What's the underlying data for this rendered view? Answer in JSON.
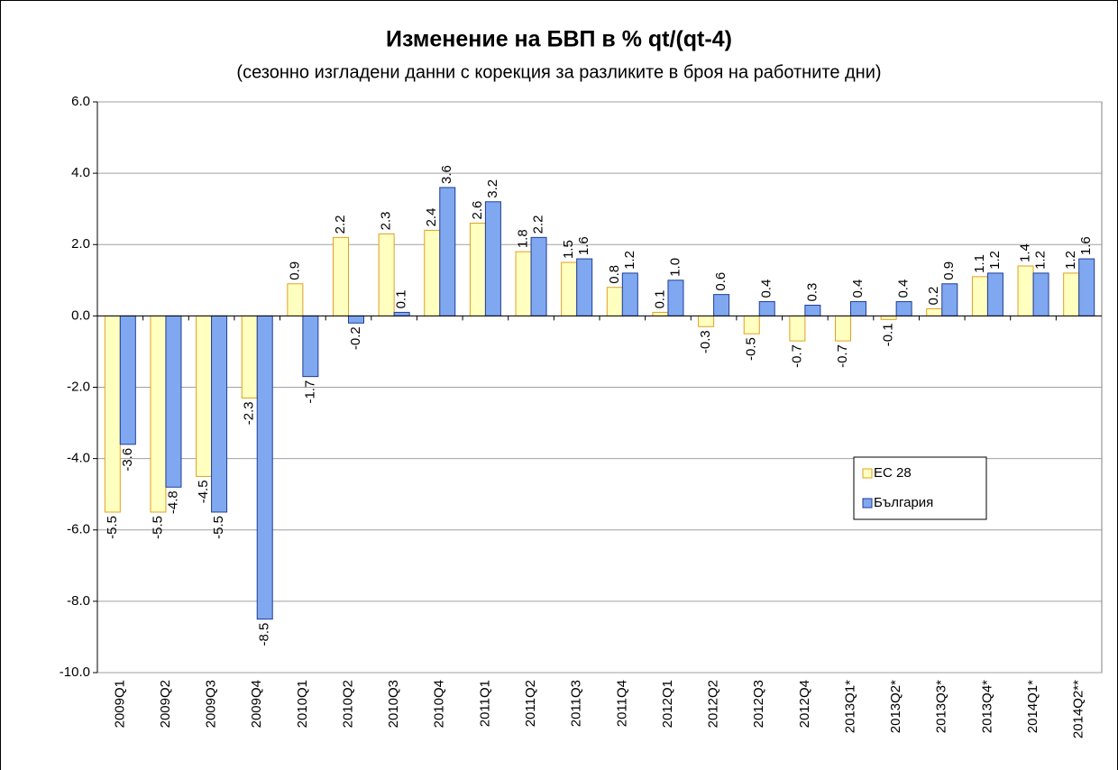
{
  "chart_data": {
    "type": "bar",
    "title": "Изменение на БВП в % qt/(qt-4)",
    "subtitle": "(сезонно изгладени данни с корекция за разликите в броя на работните дни)",
    "categories": [
      "2009Q1",
      "2009Q2",
      "2009Q3",
      "2009Q4",
      "2010Q1",
      "2010Q2",
      "2010Q3",
      "2010Q4",
      "2011Q1",
      "2011Q2",
      "2011Q3",
      "2011Q4",
      "2012Q1",
      "2012Q2",
      "2012Q3",
      "2012Q4",
      "2013Q1*",
      "2013Q2*",
      "2013Q3*",
      "2013Q4*",
      "2014Q1*",
      "2014Q2**"
    ],
    "series": [
      {
        "name": "ЕС 28",
        "color": "#ffffc0",
        "stroke": "#e0a020",
        "values": [
          -5.5,
          -5.5,
          -4.5,
          -2.3,
          0.9,
          2.2,
          2.3,
          2.4,
          2.6,
          1.8,
          1.5,
          0.8,
          0.1,
          -0.3,
          -0.5,
          -0.7,
          -0.7,
          -0.1,
          0.2,
          1.1,
          1.4,
          1.2
        ],
        "value_labels": [
          "-5.5",
          "-5.5",
          "-4.5",
          "-2.3",
          "0.9",
          "2.2",
          "2.3",
          "2.4",
          "2.6",
          "1.8",
          "1.5",
          "0.8",
          "0.1",
          "-0.3",
          "-0.5",
          "-0.7",
          "-0.7",
          "-0.1",
          "0.2",
          "1.1",
          "1.4",
          "1.2"
        ]
      },
      {
        "name": "България",
        "color": "#80a8f0",
        "stroke": "#203c98",
        "values": [
          -3.6,
          -4.8,
          -5.5,
          -8.5,
          -1.7,
          -0.2,
          0.1,
          3.6,
          3.2,
          2.2,
          1.6,
          1.2,
          1.0,
          0.6,
          0.4,
          0.3,
          0.4,
          0.4,
          0.9,
          1.2,
          1.2,
          1.6
        ],
        "value_labels": [
          "-3.6",
          "-4.8",
          "-5.5",
          "-8.5",
          "-1.7",
          "-0.2",
          "0.1",
          "3.6",
          "3.2",
          "2.2",
          "1.6",
          "1.2",
          "1.0",
          "0.6",
          "0.4",
          "0.3",
          "0.4",
          "0.4",
          "0.9",
          "1.2",
          "1.2",
          "1.6"
        ]
      }
    ],
    "ylim": [
      -10,
      6
    ],
    "yticks": [
      {
        "value": -10,
        "label": "-10.0"
      },
      {
        "value": -8,
        "label": "-8.0"
      },
      {
        "value": -6,
        "label": "-6.0"
      },
      {
        "value": -4,
        "label": "-4.0"
      },
      {
        "value": -2,
        "label": "-2.0"
      },
      {
        "value": 0,
        "label": "0.0"
      },
      {
        "value": 2,
        "label": "2.0"
      },
      {
        "value": 4,
        "label": "4.0"
      },
      {
        "value": 6,
        "label": "6.0"
      }
    ],
    "grid": true,
    "legend": "right"
  }
}
